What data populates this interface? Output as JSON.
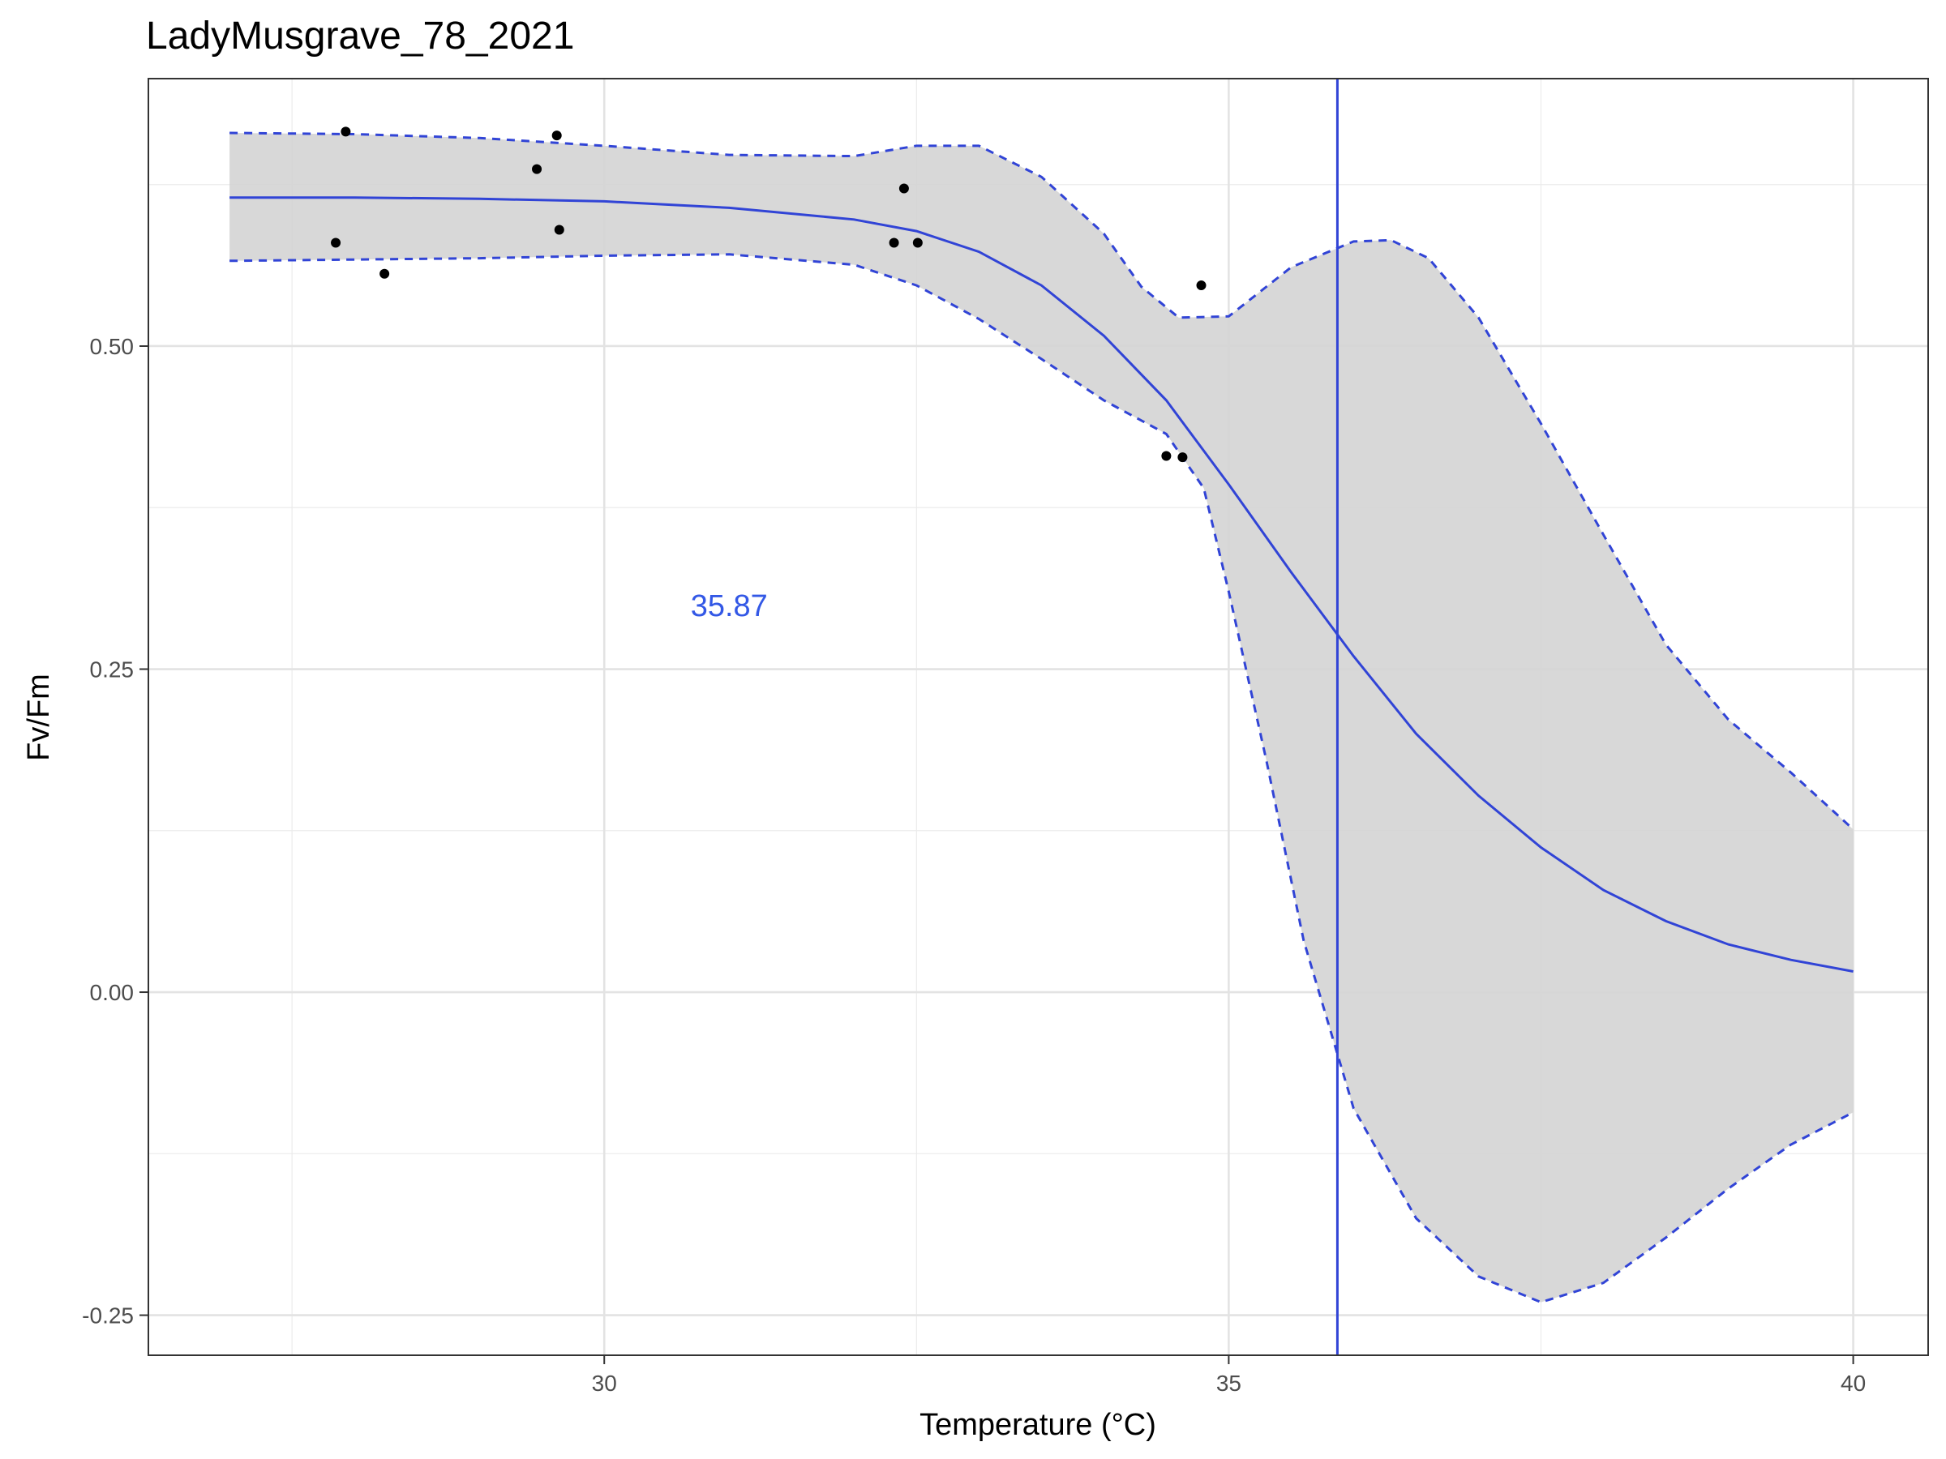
{
  "chart_data": {
    "type": "line",
    "title": "LadyMusgrave_78_2021",
    "xlabel": "Temperature (°C)",
    "ylabel": "Fv/Fm",
    "xlim": [
      26.35,
      40.6
    ],
    "ylim": [
      -0.281,
      0.707
    ],
    "x_ticks": [
      30,
      35,
      40
    ],
    "x_tick_labels": [
      "30",
      "35",
      "40"
    ],
    "y_ticks": [
      -0.25,
      0,
      0.25,
      0.5
    ],
    "y_tick_labels": [
      "-0.25",
      "0.00",
      "0.25",
      "0.50"
    ],
    "grid": true,
    "colors": {
      "fit": "#3144d6",
      "ribbon": "#d4d4d4",
      "points": "#000000",
      "annotation": "#3358e6"
    },
    "points": [
      {
        "x": 27.85,
        "y": 0.58
      },
      {
        "x": 27.93,
        "y": 0.666
      },
      {
        "x": 28.24,
        "y": 0.556
      },
      {
        "x": 29.46,
        "y": 0.637
      },
      {
        "x": 29.62,
        "y": 0.663
      },
      {
        "x": 29.64,
        "y": 0.59
      },
      {
        "x": 32.32,
        "y": 0.58
      },
      {
        "x": 32.4,
        "y": 0.622
      },
      {
        "x": 32.51,
        "y": 0.58
      },
      {
        "x": 34.5,
        "y": 0.415
      },
      {
        "x": 34.63,
        "y": 0.414
      },
      {
        "x": 34.78,
        "y": 0.547
      }
    ],
    "series": [
      {
        "role": "fit",
        "x": [
          27.0,
          28.0,
          29.0,
          30.0,
          31.0,
          32.0,
          32.5,
          33.0,
          33.5,
          34.0,
          34.5,
          35.0,
          35.5,
          36.0,
          36.5,
          37.0,
          37.5,
          38.0,
          38.5,
          39.0,
          39.5,
          40.0
        ],
        "y": [
          0.615,
          0.615,
          0.614,
          0.612,
          0.607,
          0.598,
          0.589,
          0.573,
          0.547,
          0.508,
          0.458,
          0.393,
          0.325,
          0.26,
          0.2,
          0.152,
          0.112,
          0.079,
          0.055,
          0.037,
          0.025,
          0.016
        ]
      },
      {
        "role": "upper-band",
        "x": [
          27.0,
          28.0,
          29.0,
          30.0,
          31.0,
          32.0,
          32.5,
          33.0,
          33.5,
          34.0,
          34.3,
          34.6,
          35.0,
          35.5,
          36.0,
          36.3,
          36.6,
          37.0,
          37.5,
          38.0,
          38.5,
          39.0,
          39.5,
          40.0
        ],
        "y": [
          0.665,
          0.664,
          0.661,
          0.655,
          0.648,
          0.647,
          0.655,
          0.655,
          0.631,
          0.587,
          0.546,
          0.522,
          0.523,
          0.561,
          0.581,
          0.582,
          0.568,
          0.522,
          0.44,
          0.354,
          0.269,
          0.211,
          0.17,
          0.126
        ]
      },
      {
        "role": "lower-band",
        "x": [
          27.0,
          28.0,
          29.0,
          30.0,
          31.0,
          32.0,
          32.5,
          33.0,
          33.5,
          34.0,
          34.5,
          34.8,
          35.0,
          35.3,
          35.6,
          36.0,
          36.5,
          37.0,
          37.5,
          38.0,
          38.5,
          39.0,
          39.5,
          40.0
        ],
        "y": [
          0.566,
          0.567,
          0.568,
          0.57,
          0.571,
          0.563,
          0.547,
          0.521,
          0.49,
          0.458,
          0.432,
          0.39,
          0.31,
          0.18,
          0.04,
          -0.09,
          -0.175,
          -0.22,
          -0.24,
          -0.225,
          -0.19,
          -0.152,
          -0.118,
          -0.093
        ]
      }
    ],
    "vline": {
      "x": 35.87
    },
    "annotation": {
      "text": "35.87",
      "x": 31.0,
      "y": 0.3
    }
  }
}
